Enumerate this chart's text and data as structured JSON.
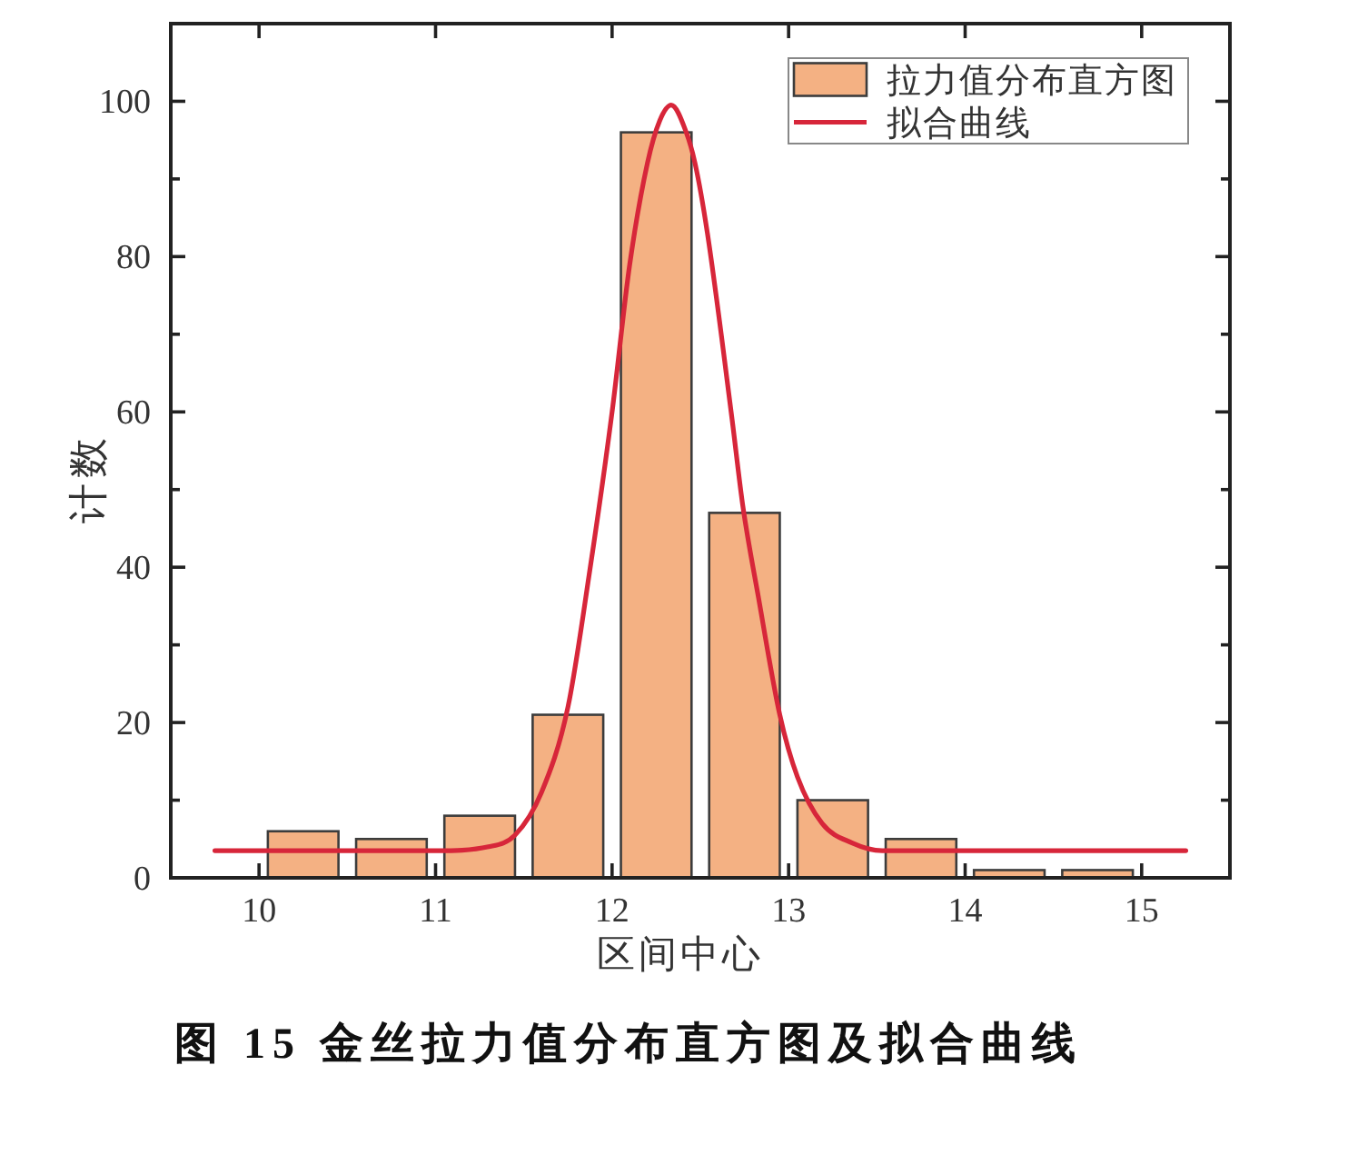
{
  "chart_data": {
    "type": "histogram",
    "xlabel": "区间中心",
    "ylabel": "计数",
    "annotations": [
      "图 15 金丝拉力值分布直方图及拟合曲线"
    ],
    "bins": [
      10,
      10.5,
      11,
      11.5,
      12,
      12.5,
      13,
      13.5,
      14,
      14.5,
      15
    ],
    "series": [
      {
        "name": "拉力值分布直方图",
        "color": "#f4b183",
        "values": [
          6,
          5,
          8,
          21,
          96,
          47,
          10,
          5,
          1,
          1
        ]
      },
      {
        "name": "拟合曲线",
        "type": "line",
        "color": "#d7263a",
        "x": [
          9.75,
          10.5,
          11,
          11.3,
          11.45,
          11.6,
          11.75,
          11.87,
          12,
          12.1,
          12.2,
          12.27,
          12.335,
          12.42,
          12.47,
          12.54,
          12.68,
          12.74,
          12.83,
          12.95,
          13.05,
          13.19,
          13.36,
          13.53,
          14,
          15.25
        ],
        "values": [
          3.5,
          3.5,
          3.5,
          4,
          5.5,
          11,
          22,
          39,
          60,
          79,
          92,
          97.5,
          99.5,
          96,
          92,
          83,
          59,
          48,
          36,
          21,
          13,
          7,
          4.5,
          3.5,
          3.5,
          3.5
        ]
      }
    ],
    "xlim": [
      9.5,
      15.5
    ],
    "xticks": [
      10,
      11,
      12,
      13,
      14,
      15
    ],
    "ylim": [
      0,
      110
    ],
    "yticks": [
      0,
      {
        "value": 10,
        "label": null
      },
      20,
      {
        "value": 30,
        "label": null
      },
      40,
      {
        "value": 50,
        "label": null
      },
      60,
      {
        "value": 70,
        "label": null
      },
      80,
      {
        "value": 90,
        "label": null
      },
      100
    ],
    "legend": "top right"
  }
}
